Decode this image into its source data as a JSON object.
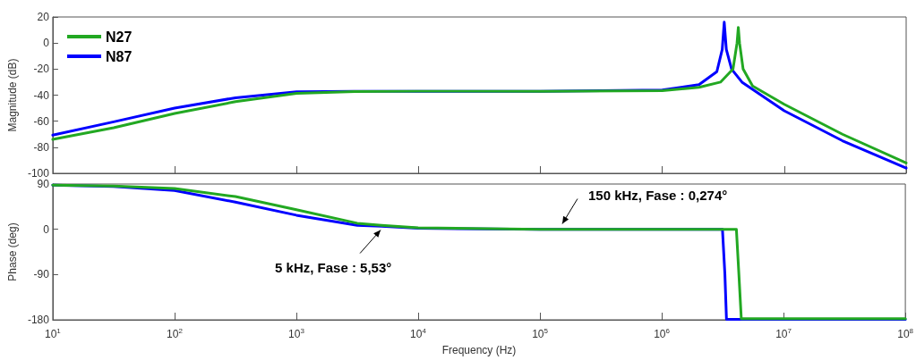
{
  "chart_data": [
    {
      "type": "line",
      "ylabel": "Magnitude (dB)",
      "xlim": [
        10,
        100000000
      ],
      "xticks": [
        {
          "value": 10,
          "label": null
        },
        {
          "value": 100,
          "label": null
        },
        {
          "value": 1000,
          "label": null
        },
        {
          "value": 10000,
          "label": null
        },
        {
          "value": 100000,
          "label": null
        },
        {
          "value": 1000000,
          "label": null
        },
        {
          "value": 10000000,
          "label": null
        },
        {
          "value": 100000000,
          "label": null
        }
      ],
      "ylim": [
        -100,
        20
      ],
      "yticks": [
        -100,
        -80,
        -60,
        -40,
        -20,
        0,
        20
      ],
      "log": "x",
      "grid": false,
      "legend": "top left",
      "marker": "none",
      "line_style": "solid",
      "tick_labels": "y",
      "series": [
        {
          "name": "N27",
          "color": "#22a822",
          "x": [
            10,
            31.6,
            100,
            316,
            1000,
            3000,
            10000,
            100000,
            1000000,
            2000000,
            3000000,
            3800000,
            4100000,
            4200000,
            4300000,
            4600000,
            5500000,
            10000000,
            30000000,
            100000000
          ],
          "values": [
            -74,
            -65,
            -54,
            -45,
            -38.6,
            -37.2,
            -37,
            -37,
            -36.5,
            -34,
            -30,
            -20,
            0,
            12,
            0,
            -20,
            -33,
            -47,
            -70,
            -92
          ]
        },
        {
          "name": "N87",
          "color": "#0000ff",
          "x": [
            10,
            31.6,
            100,
            316,
            1000,
            3000,
            10000,
            100000,
            1000000,
            2000000,
            2800000,
            3100000,
            3220000,
            3350000,
            3700000,
            4500000,
            10000000,
            30000000,
            100000000
          ],
          "values": [
            -70.7,
            -60.5,
            -50,
            -42,
            -37.5,
            -37,
            -37,
            -37,
            -36,
            -32,
            -22,
            -5,
            16,
            -5,
            -20,
            -30,
            -52,
            -75,
            -96
          ]
        }
      ]
    },
    {
      "type": "line",
      "xlabel": "Frequency (Hz)",
      "ylabel": "Phase (deg)",
      "xlim": [
        10,
        100000000
      ],
      "xticks": [
        {
          "value": 10,
          "label": "10$^{1}$"
        },
        {
          "value": 100,
          "label": "10$^{2}$"
        },
        {
          "value": 1000,
          "label": "10$^{3}$"
        },
        {
          "value": 10000,
          "label": "10$^{4}$"
        },
        {
          "value": 100000,
          "label": "10$^{5}$"
        },
        {
          "value": 1000000,
          "label": "10$^{6}$"
        },
        {
          "value": 10000000,
          "label": "10$^{7}$"
        },
        {
          "value": 100000000,
          "label": "10$^{8}$"
        }
      ],
      "ylim": [
        -180,
        90
      ],
      "yticks": [
        -180,
        -90,
        0,
        90
      ],
      "log": "x",
      "grid": false,
      "marker": "none",
      "line_style": "solid",
      "annotations": [
        {
          "text": "5 kHz, Fase : 5,53°",
          "x": 5000,
          "y": 5.53
        },
        {
          "text": "150 kHz, Fase : 0,274°",
          "x": 150000,
          "y": 0.274
        }
      ],
      "series": [
        {
          "color": "#22a822",
          "x": [
            10,
            31.6,
            100,
            316,
            1000,
            3162,
            5000,
            10000,
            100000,
            1000000,
            4100000,
            4300000,
            4500000,
            10000000,
            100000000
          ],
          "values": [
            88,
            86,
            81,
            65,
            39,
            12,
            8,
            3,
            0,
            0,
            0,
            -90,
            -178,
            -178,
            -178
          ]
        },
        {
          "color": "#0000ff",
          "x": [
            10,
            31.6,
            100,
            316,
            1000,
            3162,
            5000,
            10000,
            100000,
            1000000,
            3150000,
            3300000,
            3400000,
            10000000,
            100000000
          ],
          "values": [
            88,
            85,
            77,
            54,
            28,
            8,
            6,
            2,
            0,
            0,
            0,
            -90,
            -179,
            -179,
            -179
          ]
        }
      ]
    }
  ]
}
